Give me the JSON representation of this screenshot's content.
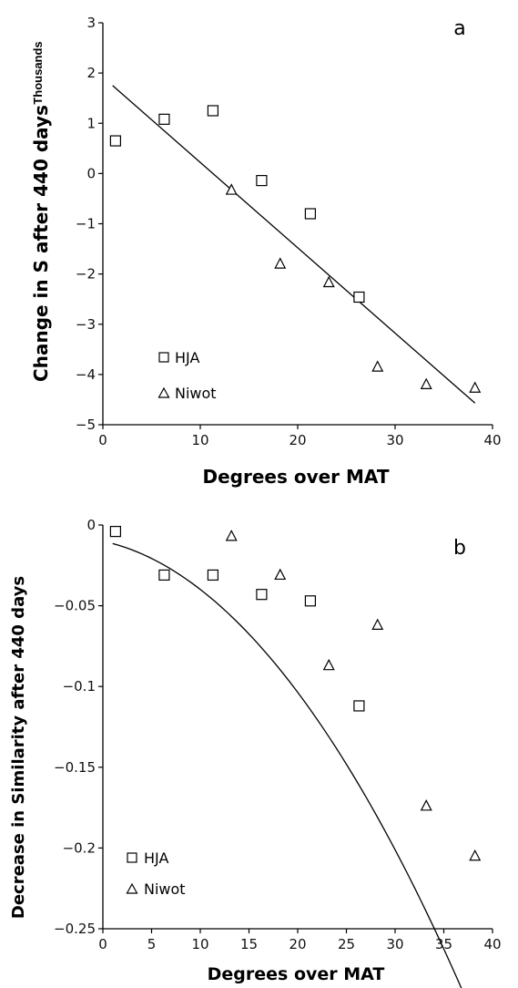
{
  "chart_data": [
    {
      "type": "scatter",
      "panel_label": "a",
      "units_label": "Thousands",
      "xlabel": "Degrees over MAT",
      "ylabel": "Change in S  after 440 days",
      "xlim": [
        0,
        40
      ],
      "ylim": [
        -5,
        3
      ],
      "xticks": [
        "0",
        "10",
        "20",
        "30",
        "40"
      ],
      "yticks": [
        "3",
        "2",
        "1",
        "0",
        "−1",
        "−2",
        "−3",
        "−4",
        "−5"
      ],
      "grid": false,
      "legend_position": "bottom-left",
      "series": [
        {
          "name": "HJA",
          "marker": "square",
          "x": [
            1.3,
            6.3,
            11.3,
            16.3,
            21.3,
            26.3
          ],
          "y": [
            0.65,
            1.08,
            1.25,
            -0.14,
            -0.8,
            -2.46
          ]
        },
        {
          "name": "Niwot",
          "marker": "triangle",
          "x": [
            13.2,
            18.2,
            23.2,
            28.2,
            33.2,
            38.2
          ],
          "y": [
            -0.33,
            -1.8,
            -2.17,
            -3.85,
            -4.2,
            -4.27
          ]
        }
      ],
      "trendline": {
        "kind": "linear",
        "x": [
          1.0,
          38.2
        ],
        "y": [
          1.75,
          -4.57
        ]
      }
    },
    {
      "type": "scatter",
      "panel_label": "b",
      "xlabel": "Degrees over MAT",
      "ylabel": "Decrease in Similarity after 440 days",
      "xlim": [
        0,
        40
      ],
      "ylim": [
        -0.25,
        0
      ],
      "xticks": [
        "0",
        "5",
        "10",
        "15",
        "20",
        "25",
        "30",
        "35",
        "40"
      ],
      "yticks": [
        "0",
        "−0.05",
        "−0.1",
        "−0.15",
        "−0.2",
        "−0.25"
      ],
      "grid": false,
      "legend_position": "bottom-left",
      "series": [
        {
          "name": "HJA",
          "marker": "square",
          "x": [
            1.3,
            6.3,
            11.3,
            16.3,
            21.3,
            26.3
          ],
          "y": [
            -0.004,
            -0.031,
            -0.031,
            -0.043,
            -0.047,
            -0.112
          ]
        },
        {
          "name": "Niwot",
          "marker": "triangle",
          "x": [
            13.2,
            18.2,
            23.2,
            28.2,
            33.2,
            38.2
          ],
          "y": [
            -0.007,
            -0.031,
            -0.087,
            -0.062,
            -0.174,
            -0.205
          ]
        }
      ],
      "trendline": {
        "kind": "quadratic",
        "x_range": [
          1.0,
          38.2
        ],
        "coefficients": [
          -0.01,
          -0.0013,
          -0.000169
        ]
      }
    }
  ]
}
